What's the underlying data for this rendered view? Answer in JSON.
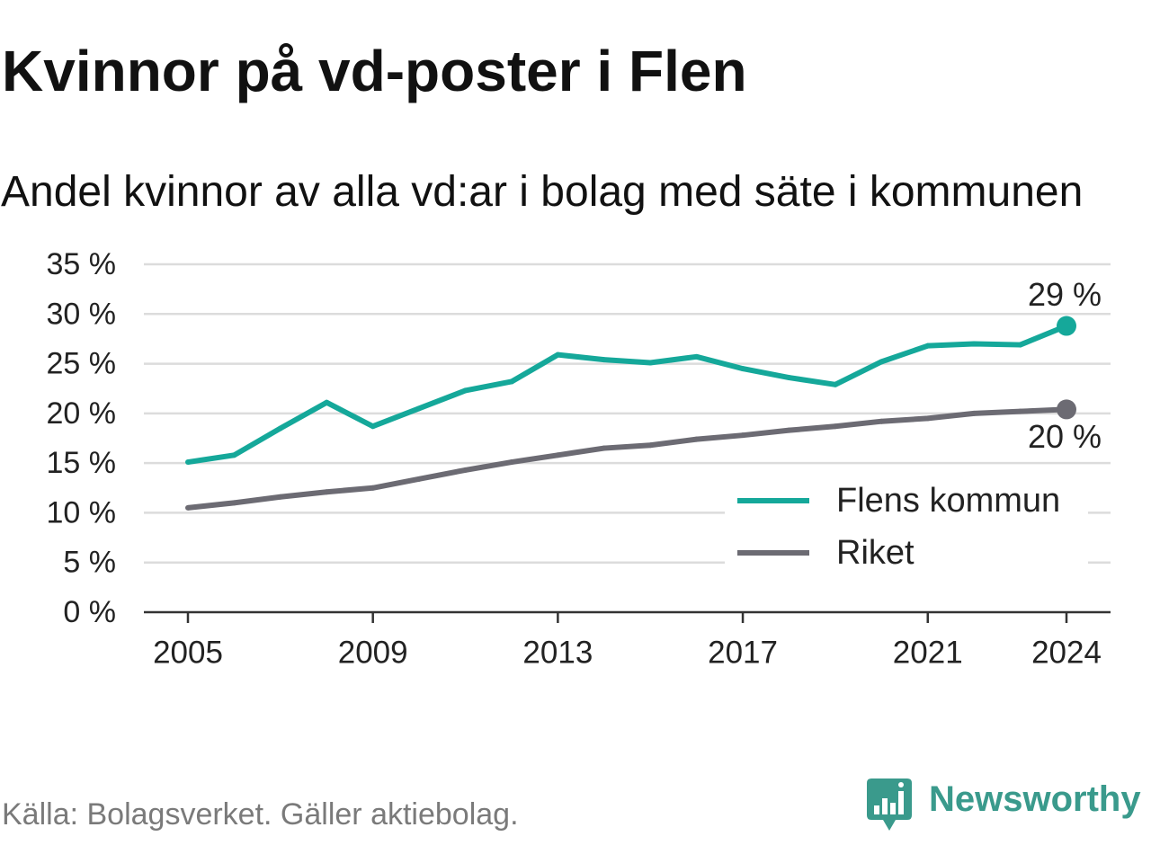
{
  "header": {
    "title": "Kvinnor på vd-poster i Flen",
    "subtitle": "Andel kvinnor av alla vd:ar i bolag med säte i kommunen"
  },
  "chart_data": {
    "type": "line",
    "x": [
      2005,
      2006,
      2007,
      2008,
      2009,
      2010,
      2011,
      2012,
      2013,
      2014,
      2015,
      2016,
      2017,
      2018,
      2019,
      2020,
      2021,
      2022,
      2023,
      2024
    ],
    "series": [
      {
        "name": "Flens kommun",
        "color": "#15a89a",
        "values": [
          15.1,
          15.8,
          18.5,
          21.1,
          18.7,
          20.5,
          22.3,
          23.2,
          25.9,
          25.4,
          25.1,
          25.7,
          24.5,
          23.6,
          22.9,
          25.2,
          26.8,
          27.0,
          26.9,
          28.8
        ],
        "end_label": "29 %"
      },
      {
        "name": "Riket",
        "color": "#6c6b73",
        "values": [
          10.5,
          11.0,
          11.6,
          12.1,
          12.5,
          13.4,
          14.3,
          15.1,
          15.8,
          16.5,
          16.8,
          17.4,
          17.8,
          18.3,
          18.7,
          19.2,
          19.5,
          20.0,
          20.2,
          20.4
        ],
        "end_label": "20 %"
      }
    ],
    "x_ticks": [
      2005,
      2009,
      2013,
      2017,
      2021,
      2024
    ],
    "y_ticks": [
      {
        "value": 0,
        "label": "0 %"
      },
      {
        "value": 5,
        "label": "5 %"
      },
      {
        "value": 10,
        "label": "10 %"
      },
      {
        "value": 15,
        "label": "15 %"
      },
      {
        "value": 20,
        "label": "20 %"
      },
      {
        "value": 25,
        "label": "25 %"
      },
      {
        "value": 30,
        "label": "30 %"
      },
      {
        "value": 35,
        "label": "35 %"
      }
    ],
    "xlim": [
      2005,
      2024
    ],
    "ylim": [
      0,
      35
    ],
    "xlabel": "",
    "ylabel": "",
    "grid": true,
    "legend_position": "lower-right"
  },
  "footer": {
    "source": "Källa: Bolagsverket. Gäller aktiebolag.",
    "brand": {
      "name": "Newsworthy",
      "color": "#3a9a8c",
      "icon": "newsworthy-logo-icon"
    }
  }
}
